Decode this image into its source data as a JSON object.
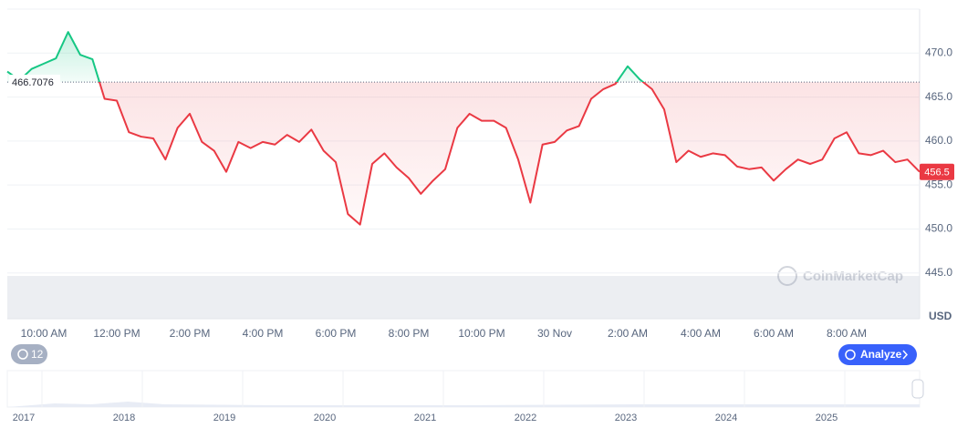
{
  "chart_data": {
    "type": "line",
    "x": [
      "9:00 AM",
      "9:20 AM",
      "9:40 AM",
      "10:00 AM",
      "10:20 AM",
      "10:40 AM",
      "11:00 AM",
      "11:20 AM",
      "11:40 AM",
      "12:00 PM",
      "12:20 PM",
      "12:40 PM",
      "1:00 PM",
      "1:20 PM",
      "1:40 PM",
      "2:00 PM",
      "2:20 PM",
      "2:40 PM",
      "3:00 PM",
      "3:20 PM",
      "3:40 PM",
      "4:00 PM",
      "4:20 PM",
      "4:40 PM",
      "5:00 PM",
      "5:20 PM",
      "5:40 PM",
      "6:00 PM",
      "6:20 PM",
      "6:40 PM",
      "7:00 PM",
      "7:20 PM",
      "7:40 PM",
      "8:00 PM",
      "8:20 PM",
      "8:40 PM",
      "9:00 PM",
      "9:20 PM",
      "9:40 PM",
      "10:00 PM",
      "10:20 PM",
      "10:40 PM",
      "11:00 PM",
      "11:20 PM",
      "11:40 PM",
      "30 Nov",
      "12:20 AM",
      "12:40 AM",
      "1:00 AM",
      "1:20 AM",
      "1:40 AM",
      "2:00 AM",
      "2:20 AM",
      "2:40 AM",
      "3:00 AM",
      "3:20 AM",
      "3:40 AM",
      "4:00 AM",
      "4:20 AM",
      "4:40 AM",
      "5:00 AM",
      "5:20 AM",
      "5:40 AM",
      "6:00 AM",
      "6:20 AM",
      "6:40 AM",
      "7:00 AM",
      "7:20 AM",
      "7:40 AM",
      "8:00 AM",
      "8:20 AM",
      "8:40 AM",
      "9:00 AM",
      "9:20 AM",
      "9:40 AM",
      "10:00 AM"
    ],
    "values": [
      467.9,
      466.9,
      468.2,
      468.8,
      469.4,
      472.4,
      469.8,
      469.3,
      464.8,
      464.6,
      461.0,
      460.5,
      460.3,
      457.9,
      461.5,
      463.1,
      459.9,
      458.9,
      456.5,
      459.9,
      459.2,
      459.9,
      459.6,
      460.7,
      459.9,
      461.3,
      458.9,
      457.6,
      451.7,
      450.5,
      457.4,
      458.6,
      457.0,
      455.8,
      454.0,
      455.5,
      456.8,
      461.5,
      463.1,
      462.3,
      462.3,
      461.5,
      457.9,
      453.0,
      459.6,
      459.9,
      461.2,
      461.7,
      464.8,
      465.9,
      466.5,
      468.5,
      467.0,
      465.9,
      463.6,
      457.6,
      458.9,
      458.2,
      458.6,
      458.4,
      457.1,
      456.8,
      457.0,
      455.5,
      456.8,
      457.9,
      457.4,
      457.9,
      460.3,
      461.0,
      458.6,
      458.4,
      458.9,
      457.6,
      457.9,
      456.5
    ],
    "xticks": [
      "10:00 AM",
      "12:00 PM",
      "2:00 PM",
      "4:00 PM",
      "6:00 PM",
      "8:00 PM",
      "10:00 PM",
      "30 Nov",
      "2:00 AM",
      "4:00 AM",
      "6:00 AM",
      "8:00 AM"
    ],
    "baseline": 466.7076,
    "ylim": [
      439.8,
      475.0
    ],
    "yticks": [
      {
        "value": 445,
        "label": "445.0"
      },
      {
        "value": 450,
        "label": "450.0"
      },
      {
        "value": 455,
        "label": "455.0"
      },
      {
        "value": 460,
        "label": "460.0"
      },
      {
        "value": 465,
        "label": "465.0"
      },
      {
        "value": 470,
        "label": "470.0"
      }
    ],
    "color_up": "#16c784",
    "color_down": "#ea3943",
    "grid": true,
    "currency": "USD"
  },
  "ui": {
    "watermark": "CoinMarketCap",
    "badge": "12",
    "button": "Analyze",
    "navigator_years": [
      "2017",
      "2018",
      "2019",
      "2020",
      "2021",
      "2022",
      "2023",
      "2024",
      "2025"
    ]
  }
}
